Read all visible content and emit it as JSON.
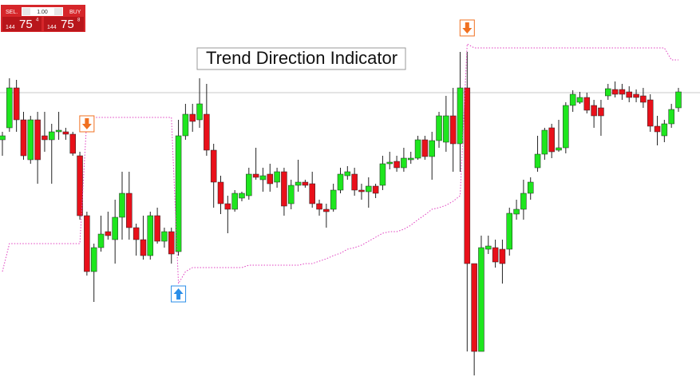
{
  "trade_panel": {
    "sell_label": "SEL.",
    "lot": "1.00",
    "buy_label": "BUY",
    "sell_prefix": "144",
    "sell_big": "75",
    "sell_sup": "4",
    "buy_prefix": "144",
    "buy_big": "75",
    "buy_sup": "8"
  },
  "chart_data": {
    "type": "candlestick",
    "title": "Trend Direction Indicator",
    "ylim": [
      0,
      482
    ],
    "up_color": "#1ee61e",
    "down_color": "#e8101a",
    "wick_color": "#222222",
    "price_line": {
      "value": 366,
      "color": "#c8c8c8"
    },
    "open": [
      307,
      322,
      372,
      332,
      282,
      332,
      312,
      307,
      317,
      317,
      314,
      287,
      212,
      142,
      172,
      192,
      182,
      210,
      240,
      197,
      182,
      162,
      212,
      180,
      192,
      167,
      312,
      339,
      332,
      339,
      294,
      254,
      227,
      220,
      234,
      237,
      264,
      257,
      264,
      254,
      267,
      227,
      250,
      254,
      252,
      227,
      220,
      220,
      244,
      262,
      264,
      244,
      242,
      249,
      250,
      277,
      280,
      272,
      282,
      284,
      307,
      286,
      306,
      304,
      337,
      302,
      372,
      152,
      42,
      170,
      172,
      170,
      170,
      214,
      220,
      240,
      272,
      289,
      322,
      294,
      297,
      350,
      354,
      360,
      350,
      347,
      362,
      370,
      370,
      367,
      364,
      362,
      357,
      324,
      312,
      327,
      347
    ],
    "close": [
      312,
      372,
      332,
      287,
      332,
      282,
      307,
      317,
      319,
      314,
      290,
      212,
      142,
      172,
      189,
      187,
      210,
      240,
      197,
      182,
      162,
      212,
      180,
      192,
      164,
      312,
      339,
      330,
      352,
      294,
      254,
      227,
      220,
      240,
      240,
      264,
      260,
      262,
      252,
      267,
      224,
      250,
      254,
      250,
      227,
      220,
      217,
      244,
      264,
      267,
      244,
      242,
      249,
      240,
      277,
      279,
      272,
      284,
      284,
      307,
      286,
      306,
      337,
      337,
      302,
      372,
      152,
      42,
      172,
      174,
      154,
      152,
      215,
      220,
      240,
      254,
      289,
      319,
      292,
      297,
      350,
      364,
      360,
      344,
      337,
      337,
      371,
      364,
      364,
      360,
      360,
      354,
      324,
      317,
      327,
      345,
      367
    ],
    "high": [
      317,
      384,
      382,
      342,
      337,
      342,
      342,
      327,
      342,
      322,
      317,
      292,
      217,
      177,
      212,
      217,
      232,
      267,
      267,
      202,
      212,
      217,
      222,
      197,
      197,
      332,
      352,
      352,
      384,
      377,
      302,
      262,
      237,
      244,
      242,
      272,
      297,
      272,
      277,
      272,
      272,
      257,
      282,
      257,
      267,
      232,
      227,
      252,
      272,
      274,
      272,
      252,
      260,
      252,
      287,
      292,
      287,
      297,
      292,
      312,
      312,
      317,
      342,
      362,
      372,
      417,
      417,
      152,
      187,
      187,
      182,
      182,
      222,
      232,
      257,
      260,
      312,
      322,
      327,
      332,
      354,
      369,
      367,
      366,
      357,
      357,
      377,
      380,
      377,
      374,
      370,
      372,
      364,
      337,
      332,
      352,
      372
    ],
    "low": [
      287,
      317,
      317,
      282,
      277,
      252,
      292,
      252,
      307,
      307,
      287,
      207,
      137,
      104,
      167,
      182,
      152,
      182,
      182,
      162,
      157,
      157,
      177,
      172,
      152,
      162,
      307,
      317,
      322,
      287,
      222,
      214,
      190,
      217,
      230,
      232,
      257,
      242,
      242,
      247,
      212,
      220,
      242,
      247,
      222,
      212,
      197,
      217,
      240,
      257,
      237,
      232,
      222,
      234,
      244,
      270,
      267,
      267,
      277,
      282,
      282,
      257,
      297,
      292,
      267,
      267,
      42,
      12,
      42,
      164,
      147,
      127,
      162,
      207,
      207,
      232,
      267,
      282,
      284,
      292,
      290,
      342,
      352,
      340,
      322,
      312,
      357,
      360,
      357,
      354,
      354,
      347,
      317,
      300,
      304,
      322,
      342
    ],
    "trend_line": {
      "color": "#e040c0",
      "values": [
        142,
        177,
        177,
        177,
        177,
        177,
        177,
        177,
        177,
        177,
        177,
        177,
        335,
        335,
        335,
        335,
        335,
        335,
        335,
        335,
        335,
        335,
        335,
        335,
        335,
        127,
        142,
        147,
        147,
        147,
        147,
        147,
        147,
        147,
        147,
        150,
        150,
        150,
        150,
        150,
        150,
        150,
        150,
        152,
        152,
        155,
        158,
        162,
        165,
        170,
        172,
        175,
        180,
        185,
        190,
        192,
        192,
        195,
        200,
        207,
        213,
        220,
        222,
        225,
        230,
        237,
        427,
        422,
        422,
        422,
        422,
        422,
        422,
        422,
        422,
        422,
        422,
        422,
        422,
        422,
        422,
        422,
        422,
        422,
        422,
        422,
        422,
        422,
        422,
        422,
        422,
        422,
        422,
        422,
        422,
        407,
        407
      ]
    },
    "signals": [
      {
        "candle": 12,
        "value": 327,
        "direction": "down",
        "color": "#f07020"
      },
      {
        "candle": 25,
        "value": 114,
        "direction": "up",
        "color": "#2a8ee8"
      },
      {
        "candle": 66,
        "value": 447,
        "direction": "down",
        "color": "#f07020"
      }
    ]
  }
}
